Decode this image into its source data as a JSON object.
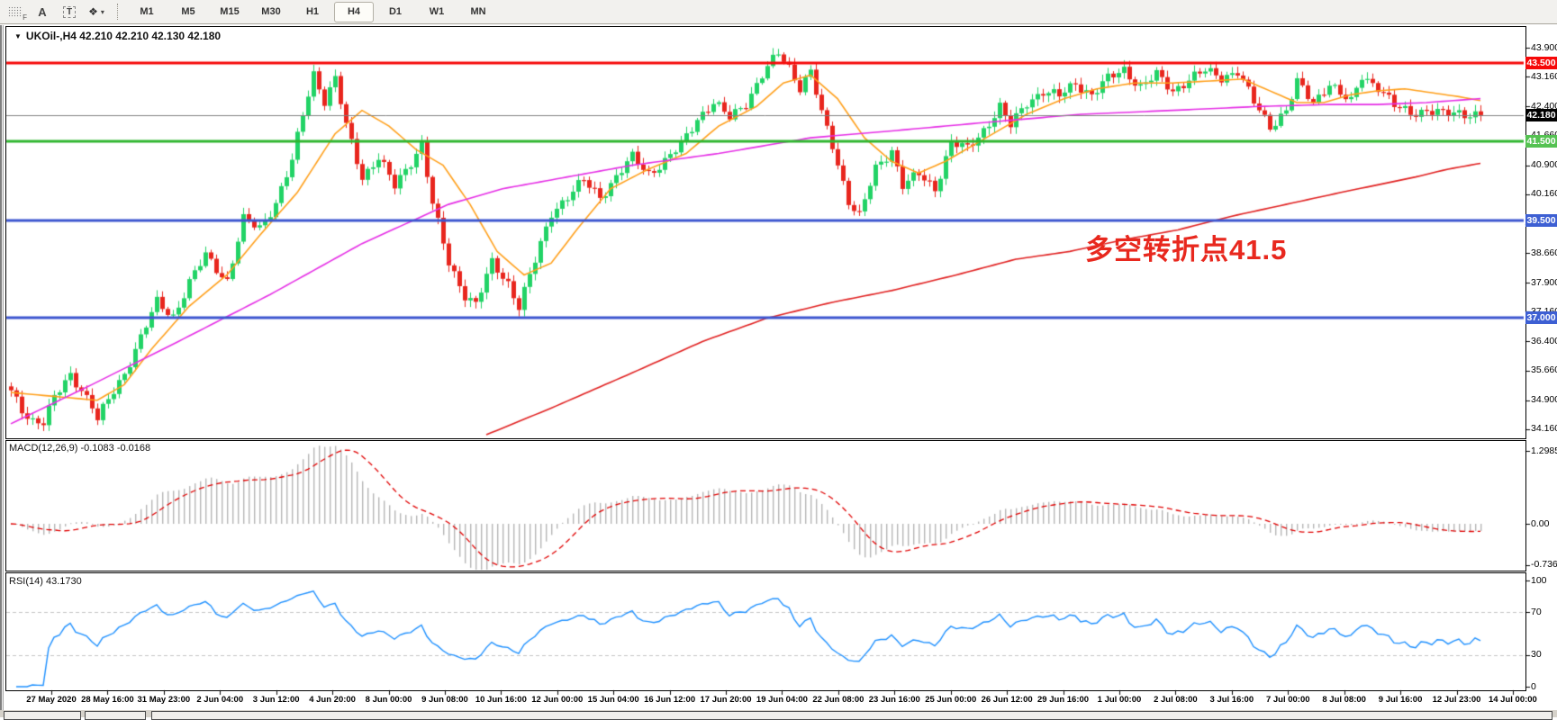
{
  "toolbar": {
    "icon_labels": {
      "grid_f": "F",
      "annotate_a": "A",
      "text_tool": "T",
      "objects": "❖",
      "dropdown": "▾"
    },
    "timeframes": [
      "M1",
      "M5",
      "M15",
      "M30",
      "H1",
      "H4",
      "D1",
      "W1",
      "MN"
    ],
    "active_timeframe": "H4"
  },
  "chart": {
    "header_arrow": "▼",
    "header": "UKOil-,H4  42.210 42.210 42.130 42.180",
    "annotation": {
      "text": "多空转折点41.5",
      "color": "#e8281e"
    }
  },
  "macd_pane": {
    "label_full": "MACD(12,26,9) -0.1083 -0.0168"
  },
  "rsi_pane": {
    "label_full": "RSI(14) 43.1730"
  },
  "time_axis": {
    "labels": [
      "27 May 2020",
      "28 May 16:00",
      "31 May 23:00",
      "2 Jun 04:00",
      "3 Jun 12:00",
      "4 Jun 20:00",
      "8 Jun 00:00",
      "9 Jun 08:00",
      "10 Jun 16:00",
      "12 Jun 00:00",
      "15 Jun 04:00",
      "16 Jun 12:00",
      "17 Jun 20:00",
      "19 Jun 04:00",
      "22 Jun 08:00",
      "23 Jun 16:00",
      "25 Jun 00:00",
      "26 Jun 12:00",
      "29 Jun 16:00",
      "1 Jul 00:00",
      "2 Jul 08:00",
      "3 Jul 16:00",
      "7 Jul 00:00",
      "8 Jul 08:00",
      "9 Jul 16:00",
      "12 Jul 23:00",
      "14 Jul 00:00"
    ]
  },
  "chart_data": {
    "type": "candlestick",
    "symbol": "UKOil-",
    "timeframe": "H4",
    "current_bar": {
      "open": 42.21,
      "high": 42.21,
      "low": 42.13,
      "close": 42.18
    },
    "bars_visible": 273,
    "x_range": [
      "27 May 2020",
      "14 Jul 00:00"
    ],
    "price_axis_ticks": [
      "43.900",
      "43.160",
      "42.400",
      "41.660",
      "40.900",
      "40.160",
      "39.400",
      "38.660",
      "37.900",
      "37.160",
      "36.400",
      "35.660",
      "34.900",
      "34.160"
    ],
    "price_badges": [
      {
        "value": "43.500",
        "price": 43.5,
        "bg": "#f60909"
      },
      {
        "value": "42.180",
        "price": 42.18,
        "bg": "#000000"
      },
      {
        "value": "41.500",
        "price": 41.5,
        "bg": "#55c252"
      },
      {
        "value": "39.500",
        "price": 39.5,
        "bg": "#3d5fd3"
      },
      {
        "value": "37.000",
        "price": 37.0,
        "bg": "#3d5fd3"
      }
    ],
    "horizontal_lines": [
      {
        "price": 43.5,
        "color": "#f60909",
        "width": 3,
        "note": "resistance"
      },
      {
        "price": 42.18,
        "color": "#808080",
        "width": 1,
        "note": "current price"
      },
      {
        "price": 41.5,
        "color": "#2fb52f",
        "width": 3,
        "note": "bull/bear pivot 41.5"
      },
      {
        "price": 39.5,
        "color": "#3c55cf",
        "width": 3,
        "note": "support"
      },
      {
        "price": 37.0,
        "color": "#3c55cf",
        "width": 3,
        "note": "support"
      }
    ],
    "candle_colors": {
      "up": "#22d366",
      "down": "#e8261e"
    },
    "close_path_anchors": [
      [
        0,
        35.1
      ],
      [
        2,
        34.65
      ],
      [
        4,
        34.4
      ],
      [
        6,
        34.35
      ],
      [
        8,
        34.95
      ],
      [
        11,
        35.55
      ],
      [
        13,
        35.2
      ],
      [
        15,
        34.75
      ],
      [
        16,
        34.4
      ],
      [
        18,
        34.9
      ],
      [
        21,
        35.6
      ],
      [
        24,
        36.5
      ],
      [
        27,
        37.4
      ],
      [
        30,
        37.05
      ],
      [
        33,
        37.9
      ],
      [
        36,
        38.6
      ],
      [
        40,
        37.95
      ],
      [
        43,
        39.5
      ],
      [
        46,
        39.3
      ],
      [
        49,
        39.95
      ],
      [
        52,
        41.0
      ],
      [
        54,
        42.2
      ],
      [
        56,
        43.25
      ],
      [
        58,
        42.55
      ],
      [
        60,
        43.1
      ],
      [
        62,
        41.9
      ],
      [
        65,
        40.6
      ],
      [
        68,
        41.1
      ],
      [
        71,
        40.35
      ],
      [
        74,
        41.0
      ],
      [
        76,
        41.45
      ],
      [
        78,
        39.9
      ],
      [
        81,
        38.4
      ],
      [
        84,
        37.6
      ],
      [
        86,
        37.35
      ],
      [
        89,
        38.4
      ],
      [
        92,
        37.9
      ],
      [
        94,
        37.3
      ],
      [
        97,
        38.45
      ],
      [
        100,
        39.7
      ],
      [
        103,
        40.1
      ],
      [
        106,
        40.5
      ],
      [
        109,
        40.1
      ],
      [
        112,
        40.6
      ],
      [
        115,
        41.1
      ],
      [
        118,
        40.7
      ],
      [
        121,
        41.0
      ],
      [
        124,
        41.4
      ],
      [
        127,
        42.1
      ],
      [
        130,
        42.5
      ],
      [
        133,
        42.1
      ],
      [
        136,
        42.5
      ],
      [
        139,
        43.2
      ],
      [
        142,
        43.75
      ],
      [
        144,
        43.4
      ],
      [
        146,
        42.9
      ],
      [
        148,
        43.3
      ],
      [
        150,
        42.2
      ],
      [
        152,
        41.4
      ],
      [
        155,
        40.0
      ],
      [
        157,
        39.6
      ],
      [
        160,
        40.8
      ],
      [
        163,
        41.3
      ],
      [
        165,
        40.4
      ],
      [
        168,
        40.65
      ],
      [
        171,
        40.3
      ],
      [
        174,
        41.5
      ],
      [
        177,
        41.3
      ],
      [
        180,
        41.8
      ],
      [
        183,
        42.4
      ],
      [
        185,
        41.9
      ],
      [
        188,
        42.5
      ],
      [
        191,
        42.8
      ],
      [
        194,
        42.65
      ],
      [
        197,
        43.0
      ],
      [
        200,
        42.7
      ],
      [
        203,
        43.1
      ],
      [
        206,
        43.35
      ],
      [
        209,
        42.9
      ],
      [
        212,
        43.2
      ],
      [
        215,
        42.8
      ],
      [
        218,
        43.1
      ],
      [
        221,
        43.3
      ],
      [
        224,
        43.15
      ],
      [
        227,
        43.3
      ],
      [
        230,
        42.5
      ],
      [
        233,
        41.9
      ],
      [
        236,
        42.3
      ],
      [
        238,
        43.0
      ],
      [
        241,
        42.5
      ],
      [
        244,
        43.0
      ],
      [
        246,
        42.7
      ],
      [
        248,
        42.5
      ],
      [
        250,
        43.2
      ],
      [
        253,
        42.9
      ],
      [
        256,
        42.4
      ],
      [
        259,
        42.25
      ],
      [
        262,
        42.3
      ],
      [
        265,
        42.2
      ],
      [
        268,
        42.25
      ],
      [
        272,
        42.18
      ]
    ],
    "moving_averages": [
      {
        "name": "fast",
        "color": "#ff9f1a",
        "anchors": [
          [
            0,
            35.1
          ],
          [
            8,
            35.0
          ],
          [
            16,
            34.9
          ],
          [
            21,
            35.3
          ],
          [
            26,
            36.2
          ],
          [
            33,
            37.3
          ],
          [
            40,
            38.1
          ],
          [
            46,
            39.1
          ],
          [
            53,
            40.2
          ],
          [
            60,
            41.7
          ],
          [
            65,
            42.3
          ],
          [
            70,
            41.9
          ],
          [
            75,
            41.3
          ],
          [
            80,
            40.9
          ],
          [
            85,
            39.9
          ],
          [
            90,
            38.7
          ],
          [
            95,
            38.1
          ],
          [
            100,
            38.4
          ],
          [
            105,
            39.3
          ],
          [
            111,
            40.3
          ],
          [
            118,
            40.8
          ],
          [
            125,
            41.2
          ],
          [
            131,
            41.9
          ],
          [
            138,
            42.4
          ],
          [
            143,
            43.0
          ],
          [
            148,
            43.2
          ],
          [
            153,
            42.6
          ],
          [
            158,
            41.6
          ],
          [
            163,
            41.0
          ],
          [
            168,
            40.7
          ],
          [
            173,
            41.0
          ],
          [
            178,
            41.4
          ],
          [
            183,
            41.8
          ],
          [
            188,
            42.2
          ],
          [
            195,
            42.6
          ],
          [
            201,
            42.85
          ],
          [
            208,
            43.0
          ],
          [
            215,
            43.0
          ],
          [
            222,
            43.05
          ],
          [
            228,
            43.1
          ],
          [
            233,
            42.8
          ],
          [
            238,
            42.5
          ],
          [
            243,
            42.5
          ],
          [
            248,
            42.7
          ],
          [
            253,
            42.8
          ],
          [
            258,
            42.85
          ],
          [
            263,
            42.75
          ],
          [
            268,
            42.65
          ],
          [
            272,
            42.55
          ]
        ]
      },
      {
        "name": "mid",
        "color": "#e52ee5",
        "anchors": [
          [
            0,
            34.3
          ],
          [
            15,
            35.3
          ],
          [
            31,
            36.4
          ],
          [
            48,
            37.6
          ],
          [
            65,
            38.9
          ],
          [
            81,
            39.9
          ],
          [
            91,
            40.3
          ],
          [
            101,
            40.55
          ],
          [
            115,
            40.9
          ],
          [
            131,
            41.2
          ],
          [
            148,
            41.6
          ],
          [
            165,
            41.8
          ],
          [
            181,
            42.0
          ],
          [
            198,
            42.2
          ],
          [
            215,
            42.3
          ],
          [
            231,
            42.4
          ],
          [
            244,
            42.45
          ],
          [
            253,
            42.45
          ],
          [
            262,
            42.5
          ],
          [
            272,
            42.6
          ]
        ]
      },
      {
        "name": "slow",
        "color": "#e02020",
        "anchors": [
          [
            88,
            34.02
          ],
          [
            100,
            34.7
          ],
          [
            115,
            35.6
          ],
          [
            128,
            36.4
          ],
          [
            140,
            37.0
          ],
          [
            152,
            37.4
          ],
          [
            163,
            37.7
          ],
          [
            175,
            38.1
          ],
          [
            186,
            38.5
          ],
          [
            196,
            38.7
          ],
          [
            206,
            39.0
          ],
          [
            216,
            39.25
          ],
          [
            226,
            39.6
          ],
          [
            236,
            39.9
          ],
          [
            246,
            40.2
          ],
          [
            253,
            40.4
          ],
          [
            260,
            40.6
          ],
          [
            266,
            40.8
          ],
          [
            272,
            40.95
          ]
        ]
      }
    ],
    "indicators": {
      "macd": {
        "params": "12,26,9",
        "last_main": -0.1083,
        "last_signal": -0.0168,
        "axis_ticks": [
          "1.2985",
          "0.00",
          "-0.7362"
        ],
        "bar_color": "#b4b4b4",
        "signal_color": "#e00000"
      },
      "rsi": {
        "period": 14,
        "last_value": 43.173,
        "axis_ticks": [
          "100",
          "70",
          "30",
          "0"
        ],
        "levels": [
          70,
          30
        ],
        "line_color": "#1e90ff",
        "level_color": "#c4c4c4"
      }
    },
    "annotation": {
      "text": "多空转折点41.5",
      "color": "#e8281e"
    }
  }
}
